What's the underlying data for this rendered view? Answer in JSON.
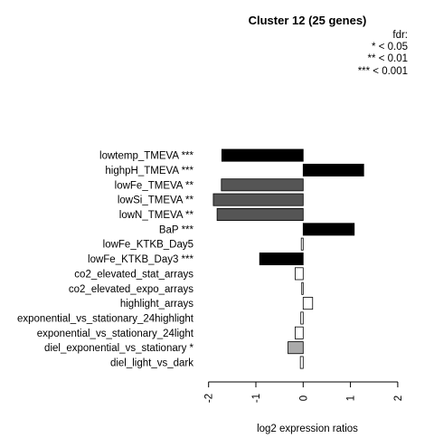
{
  "chart_data": {
    "type": "bar",
    "orientation": "horizontal",
    "title": "Cluster 12 (25 genes)",
    "xlabel": "log2 expression ratios",
    "xlim": [
      -2,
      2
    ],
    "xticks": [
      "-2",
      "-1",
      "0",
      "1",
      "2"
    ],
    "legend": {
      "title": "fdr:",
      "entries": [
        "* < 0.05",
        "** < 0.01",
        "*** < 0.001"
      ],
      "placement": "top-right"
    },
    "categories": [
      "lowtemp_TMEVA ***",
      "highpH_TMEVA ***",
      "lowFe_TMEVA **",
      "lowSi_TMEVA **",
      "lowN_TMEVA **",
      "BaP ***",
      "lowFe_KTKB_Day5",
      "lowFe_KTKB_Day3 ***",
      "co2_elevated_stat_arrays",
      "co2_elevated_expo_arrays",
      "highlight_arrays",
      "exponential_vs_stationary_24highlight",
      "exponential_vs_stationary_24light",
      "diel_exponential_vs_stationary *",
      "diel_light_vs_dark"
    ],
    "values": [
      -1.72,
      1.28,
      -1.73,
      -1.9,
      -1.82,
      1.08,
      -0.04,
      -0.92,
      -0.17,
      -0.03,
      0.2,
      -0.05,
      -0.17,
      -0.32,
      -0.06
    ],
    "colors": [
      "#000000",
      "#000000",
      "#555555",
      "#555555",
      "#555555",
      "#000000",
      "#ffffff",
      "#000000",
      "#ffffff",
      "#ffffff",
      "#ffffff",
      "#ffffff",
      "#ffffff",
      "#aaaaaa",
      "#ffffff"
    ]
  }
}
